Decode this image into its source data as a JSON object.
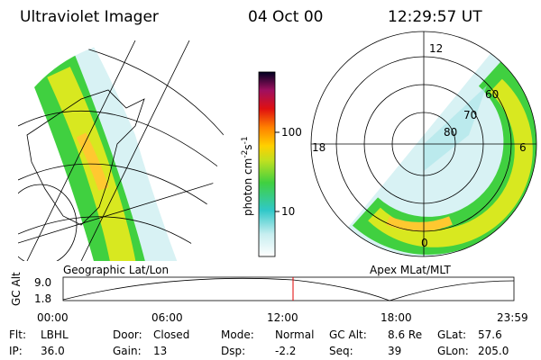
{
  "header": {
    "title": "Ultraviolet Imager",
    "date": "04 Oct 00",
    "time": "12:29:57 UT"
  },
  "colorbar": {
    "label": [
      "photon cm",
      "-2",
      "s",
      "-1"
    ],
    "ticks": [
      "100",
      "10"
    ]
  },
  "left_panel": {
    "caption": "Geographic Lat/Lon"
  },
  "right_panel": {
    "caption": "Apex MLat/MLT",
    "mlt_labels": [
      "12",
      "18",
      "6",
      "0"
    ],
    "mlat_labels": [
      "60",
      "70",
      "80"
    ]
  },
  "orbit_plot": {
    "ylabel": "GC Alt",
    "yticks": [
      "9.0",
      "1.8"
    ],
    "xticks": [
      "00:00",
      "06:00",
      "12:00",
      "18:00",
      "23:59"
    ]
  },
  "info": [
    [
      {
        "label": "Flt:",
        "value": "LBHL"
      },
      {
        "label": "Door:",
        "value": "Closed"
      },
      {
        "label": "Mode:",
        "value": "Normal"
      },
      {
        "label": "GC Alt:",
        "value": "8.6 Re"
      },
      {
        "label": "GLat:",
        "value": "57.6"
      }
    ],
    [
      {
        "label": "IP:",
        "value": "36.0"
      },
      {
        "label": "Gain:",
        "value": "13"
      },
      {
        "label": "Dsp:",
        "value": "-2.2"
      },
      {
        "label": "Seq:",
        "value": "39"
      },
      {
        "label": "GLon:",
        "value": "205.0"
      }
    ]
  ]
}
